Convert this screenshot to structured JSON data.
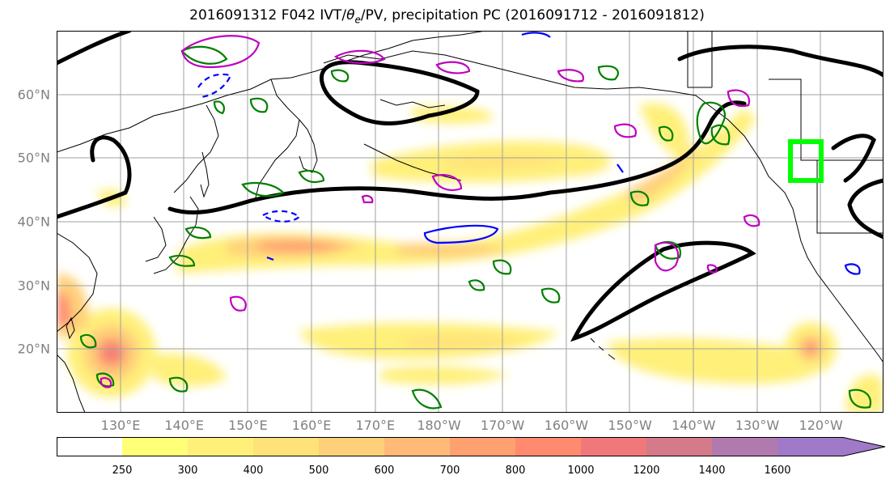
{
  "title": "2016091312 F042 IVT/θe/PV, precipitation PC (2016091712 - 2016091812)",
  "map": {
    "lat_labels": [
      {
        "text": "60°N",
        "lat": 60
      },
      {
        "text": "50°N",
        "lat": 50
      },
      {
        "text": "40°N",
        "lat": 40
      },
      {
        "text": "30°N",
        "lat": 30
      },
      {
        "text": "20°N",
        "lat": 20
      }
    ],
    "lon_labels": [
      "130°E",
      "140°E",
      "150°E",
      "160°E",
      "170°E",
      "180°W",
      "170°W",
      "160°W",
      "150°W",
      "140°W",
      "130°W",
      "120°W"
    ],
    "lat_range": [
      10,
      70
    ],
    "colors": {
      "ivt_fill": [
        "#ffffff",
        "#ffff78",
        "#fff07a",
        "#ffe27a",
        "#ffd07a",
        "#ffba78",
        "#ffa070",
        "#ff8a70",
        "#f0787a",
        "#d47a8a",
        "#b07aae",
        "#a07ac8"
      ],
      "theta_contour": "#000000",
      "pv_positive": "#008000",
      "pv_negative": "#0000ff",
      "precip_contour": "#c000c0",
      "target_box": "#00ff00"
    }
  },
  "colorbar": {
    "labels": [
      "250",
      "300",
      "400",
      "500",
      "600",
      "700",
      "800",
      "1000",
      "1200",
      "1400",
      "1600"
    ],
    "colors": [
      "#ffffff",
      "#ffff78",
      "#fff07a",
      "#ffe27a",
      "#ffd07a",
      "#ffba78",
      "#ffa070",
      "#ff8a70",
      "#f0787a",
      "#d47a8a",
      "#b07aae",
      "#a07ac8"
    ]
  }
}
